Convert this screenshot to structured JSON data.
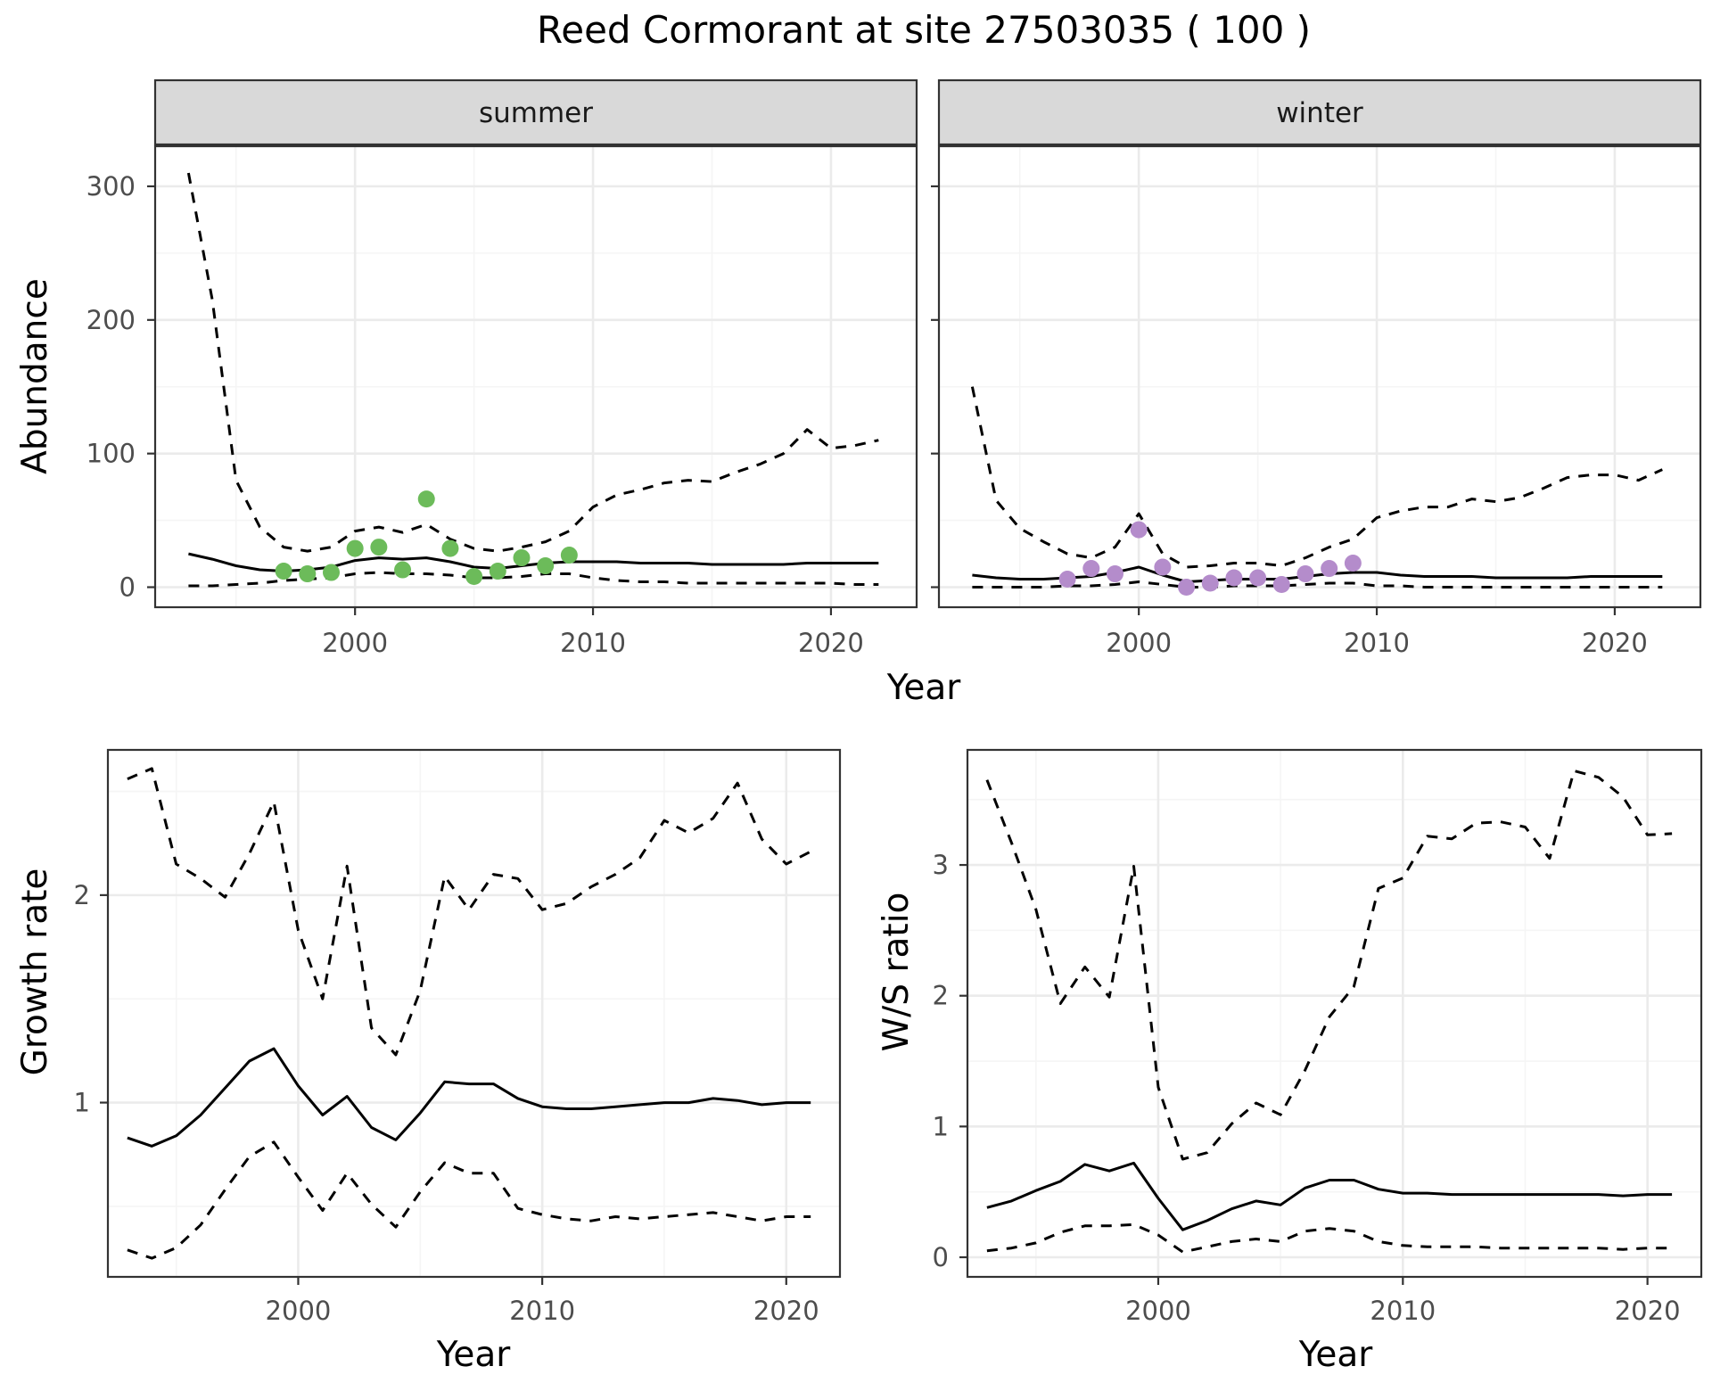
{
  "figure_title": "Reed Cormorant at site 27503035 ( 100 )",
  "colors": {
    "summer_points": "#6cbb5a",
    "winter_points": "#b48ccb",
    "line": "#000000",
    "grid_major": "#ebebeb",
    "grid_minor": "#f5f5f5",
    "strip_fill": "#d9d9d9",
    "panel_border": "#333333"
  },
  "chart_data": [
    {
      "type": "line",
      "panel": "summer",
      "strip_label": "summer",
      "xlabel": "Year",
      "ylabel": "Abundance",
      "xlim": [
        1991.6,
        2023.6
      ],
      "ylim": [
        -15,
        330
      ],
      "x_ticks": [
        2000,
        2010,
        2020
      ],
      "y_ticks": [
        0,
        100,
        200,
        300
      ],
      "grid": true,
      "series": [
        {
          "role": "estimate",
          "style": "solid",
          "x": [
            1993,
            1994,
            1995,
            1996,
            1997,
            1998,
            1999,
            2000,
            2001,
            2002,
            2003,
            2004,
            2005,
            2006,
            2007,
            2008,
            2009,
            2010,
            2011,
            2012,
            2013,
            2014,
            2015,
            2016,
            2017,
            2018,
            2019,
            2020,
            2021,
            2022
          ],
          "values": [
            25,
            21,
            16,
            13,
            12,
            13,
            15,
            20,
            22,
            21,
            22,
            19,
            15,
            14,
            16,
            18,
            19,
            19,
            19,
            18,
            18,
            18,
            17,
            17,
            17,
            17,
            18,
            18,
            18,
            18
          ]
        },
        {
          "role": "upper",
          "style": "dashed",
          "x": [
            1993,
            1994,
            1995,
            1996,
            1997,
            1998,
            1999,
            2000,
            2001,
            2002,
            2003,
            2004,
            2005,
            2006,
            2007,
            2008,
            2009,
            2010,
            2011,
            2012,
            2013,
            2014,
            2015,
            2016,
            2017,
            2018,
            2019,
            2020,
            2021,
            2022
          ],
          "values": [
            310,
            215,
            80,
            45,
            30,
            27,
            30,
            42,
            45,
            41,
            47,
            36,
            29,
            27,
            30,
            34,
            42,
            60,
            69,
            73,
            78,
            80,
            79,
            86,
            92,
            100,
            118,
            104,
            106,
            110
          ]
        },
        {
          "role": "lower",
          "style": "dashed",
          "x": [
            1993,
            1994,
            1995,
            1996,
            1997,
            1998,
            1999,
            2000,
            2001,
            2002,
            2003,
            2004,
            2005,
            2006,
            2007,
            2008,
            2009,
            2010,
            2011,
            2012,
            2013,
            2014,
            2015,
            2016,
            2017,
            2018,
            2019,
            2020,
            2021,
            2022
          ],
          "values": [
            1,
            1,
            2,
            3,
            5,
            6,
            7,
            10,
            11,
            10,
            10,
            9,
            7,
            7,
            8,
            10,
            10,
            7,
            5,
            4,
            4,
            3,
            3,
            3,
            3,
            3,
            3,
            3,
            2,
            2
          ]
        },
        {
          "role": "observed",
          "style": "points",
          "x": [
            1997,
            1998,
            1999,
            2000,
            2001,
            2002,
            2003,
            2004,
            2005,
            2006,
            2007,
            2008,
            2009
          ],
          "values": [
            12,
            10,
            11,
            29,
            30,
            13,
            66,
            29,
            8,
            12,
            22,
            16,
            24
          ]
        }
      ]
    },
    {
      "type": "line",
      "panel": "winter",
      "strip_label": "winter",
      "xlabel": "Year",
      "ylabel": "Abundance",
      "xlim": [
        1991.6,
        2023.6
      ],
      "ylim": [
        -15,
        330
      ],
      "x_ticks": [
        2000,
        2010,
        2020
      ],
      "y_ticks": [
        0,
        100,
        200,
        300
      ],
      "grid": true,
      "series": [
        {
          "role": "estimate",
          "style": "solid",
          "x": [
            1993,
            1994,
            1995,
            1996,
            1997,
            1998,
            1999,
            2000,
            2001,
            2002,
            2003,
            2004,
            2005,
            2006,
            2007,
            2008,
            2009,
            2010,
            2011,
            2012,
            2013,
            2014,
            2015,
            2016,
            2017,
            2018,
            2019,
            2020,
            2021,
            2022
          ],
          "values": [
            9,
            7,
            6,
            6,
            7,
            8,
            11,
            15,
            9,
            4,
            5,
            6,
            6,
            6,
            8,
            10,
            11,
            11,
            9,
            8,
            8,
            8,
            7,
            7,
            7,
            7,
            8,
            8,
            8,
            8
          ]
        },
        {
          "role": "upper",
          "style": "dashed",
          "x": [
            1993,
            1994,
            1995,
            1996,
            1997,
            1998,
            1999,
            2000,
            2001,
            2002,
            2003,
            2004,
            2005,
            2006,
            2007,
            2008,
            2009,
            2010,
            2011,
            2012,
            2013,
            2014,
            2015,
            2016,
            2017,
            2018,
            2019,
            2020,
            2021,
            2022
          ],
          "values": [
            150,
            65,
            44,
            34,
            25,
            22,
            30,
            55,
            25,
            15,
            16,
            18,
            18,
            16,
            22,
            30,
            36,
            52,
            57,
            60,
            60,
            66,
            64,
            67,
            74,
            82,
            84,
            84,
            80,
            88
          ]
        },
        {
          "role": "lower",
          "style": "dashed",
          "x": [
            1993,
            1994,
            1995,
            1996,
            1997,
            1998,
            1999,
            2000,
            2001,
            2002,
            2003,
            2004,
            2005,
            2006,
            2007,
            2008,
            2009,
            2010,
            2011,
            2012,
            2013,
            2014,
            2015,
            2016,
            2017,
            2018,
            2019,
            2020,
            2021,
            2022
          ],
          "values": [
            0,
            0,
            0,
            0,
            1,
            1,
            2,
            4,
            2,
            0,
            0,
            1,
            1,
            1,
            2,
            3,
            3,
            1,
            1,
            0,
            0,
            0,
            0,
            0,
            0,
            0,
            0,
            0,
            0,
            0
          ]
        },
        {
          "role": "observed",
          "style": "points",
          "x": [
            1997,
            1998,
            1999,
            2000,
            2001,
            2002,
            2003,
            2004,
            2005,
            2006,
            2007,
            2008,
            2009
          ],
          "values": [
            6,
            14,
            10,
            43,
            15,
            0,
            3,
            7,
            7,
            2,
            10,
            14,
            18
          ]
        }
      ]
    },
    {
      "type": "line",
      "panel": "growth",
      "xlabel": "Year",
      "ylabel": "Growth rate",
      "xlim": [
        1992.2,
        2022.2
      ],
      "ylim": [
        0.16,
        2.7
      ],
      "x_ticks": [
        2000,
        2010,
        2020
      ],
      "y_ticks": [
        1,
        2
      ],
      "grid": true,
      "series": [
        {
          "role": "estimate",
          "style": "solid",
          "x": [
            1993,
            1994,
            1995,
            1996,
            1997,
            1998,
            1999,
            2000,
            2001,
            2002,
            2003,
            2004,
            2005,
            2006,
            2007,
            2008,
            2009,
            2010,
            2011,
            2012,
            2013,
            2014,
            2015,
            2016,
            2017,
            2018,
            2019,
            2020,
            2021
          ],
          "values": [
            0.83,
            0.79,
            0.84,
            0.94,
            1.07,
            1.2,
            1.26,
            1.08,
            0.94,
            1.03,
            0.88,
            0.82,
            0.95,
            1.1,
            1.09,
            1.09,
            1.02,
            0.98,
            0.97,
            0.97,
            0.98,
            0.99,
            1.0,
            1.0,
            1.02,
            1.01,
            0.99,
            1.0,
            1.0
          ]
        },
        {
          "role": "upper",
          "style": "dashed",
          "x": [
            1993,
            1994,
            1995,
            1996,
            1997,
            1998,
            1999,
            2000,
            2001,
            2002,
            2003,
            2004,
            2005,
            2006,
            2007,
            2008,
            2009,
            2010,
            2011,
            2012,
            2013,
            2014,
            2015,
            2016,
            2017,
            2018,
            2019,
            2020,
            2021
          ],
          "values": [
            2.56,
            2.61,
            2.15,
            2.08,
            1.99,
            2.2,
            2.45,
            1.83,
            1.5,
            2.14,
            1.36,
            1.23,
            1.54,
            2.09,
            1.93,
            2.1,
            2.08,
            1.93,
            1.96,
            2.04,
            2.1,
            2.18,
            2.36,
            2.3,
            2.37,
            2.54,
            2.27,
            2.15,
            2.21
          ]
        },
        {
          "role": "lower",
          "style": "dashed",
          "x": [
            1993,
            1994,
            1995,
            1996,
            1997,
            1998,
            1999,
            2000,
            2001,
            2002,
            2003,
            2004,
            2005,
            2006,
            2007,
            2008,
            2009,
            2010,
            2011,
            2012,
            2013,
            2014,
            2015,
            2016,
            2017,
            2018,
            2019,
            2020,
            2021
          ],
          "values": [
            0.29,
            0.25,
            0.3,
            0.41,
            0.58,
            0.74,
            0.81,
            0.64,
            0.48,
            0.66,
            0.51,
            0.4,
            0.57,
            0.71,
            0.66,
            0.66,
            0.49,
            0.46,
            0.44,
            0.43,
            0.45,
            0.44,
            0.45,
            0.46,
            0.47,
            0.45,
            0.43,
            0.45,
            0.45
          ]
        }
      ]
    },
    {
      "type": "line",
      "panel": "ws_ratio",
      "xlabel": "Year",
      "ylabel": "W/S ratio",
      "xlim": [
        1992.2,
        2022.2
      ],
      "ylim": [
        -0.15,
        3.88
      ],
      "x_ticks": [
        2000,
        2010,
        2020
      ],
      "y_ticks": [
        0,
        1,
        2,
        3
      ],
      "grid": true,
      "series": [
        {
          "role": "estimate",
          "style": "solid",
          "x": [
            1993,
            1994,
            1995,
            1996,
            1997,
            1998,
            1999,
            2000,
            2001,
            2002,
            2003,
            2004,
            2005,
            2006,
            2007,
            2008,
            2009,
            2010,
            2011,
            2012,
            2013,
            2014,
            2015,
            2016,
            2017,
            2018,
            2019,
            2020,
            2021
          ],
          "values": [
            0.38,
            0.43,
            0.51,
            0.58,
            0.71,
            0.66,
            0.72,
            0.45,
            0.21,
            0.28,
            0.37,
            0.43,
            0.4,
            0.53,
            0.59,
            0.59,
            0.52,
            0.49,
            0.49,
            0.48,
            0.48,
            0.48,
            0.48,
            0.48,
            0.48,
            0.48,
            0.47,
            0.48,
            0.48
          ]
        },
        {
          "role": "upper",
          "style": "dashed",
          "x": [
            1993,
            1994,
            1995,
            1996,
            1997,
            1998,
            1999,
            2000,
            2001,
            2002,
            2003,
            2004,
            2005,
            2006,
            2007,
            2008,
            2009,
            2010,
            2011,
            2012,
            2013,
            2014,
            2015,
            2016,
            2017,
            2018,
            2019,
            2020,
            2021
          ],
          "values": [
            3.65,
            3.17,
            2.66,
            1.94,
            2.22,
            1.99,
            2.99,
            1.3,
            0.75,
            0.8,
            1.02,
            1.18,
            1.09,
            1.43,
            1.84,
            2.07,
            2.82,
            2.9,
            3.22,
            3.2,
            3.32,
            3.33,
            3.29,
            3.05,
            3.72,
            3.67,
            3.52,
            3.23,
            3.24
          ]
        },
        {
          "role": "lower",
          "style": "dashed",
          "x": [
            1993,
            1994,
            1995,
            1996,
            1997,
            1998,
            1999,
            2000,
            2001,
            2002,
            2003,
            2004,
            2005,
            2006,
            2007,
            2008,
            2009,
            2010,
            2011,
            2012,
            2013,
            2014,
            2015,
            2016,
            2017,
            2018,
            2019,
            2020,
            2021
          ],
          "values": [
            0.05,
            0.07,
            0.11,
            0.19,
            0.24,
            0.24,
            0.25,
            0.17,
            0.04,
            0.08,
            0.12,
            0.14,
            0.12,
            0.2,
            0.22,
            0.2,
            0.12,
            0.09,
            0.08,
            0.08,
            0.08,
            0.07,
            0.07,
            0.07,
            0.07,
            0.07,
            0.06,
            0.07,
            0.07
          ]
        }
      ]
    }
  ]
}
